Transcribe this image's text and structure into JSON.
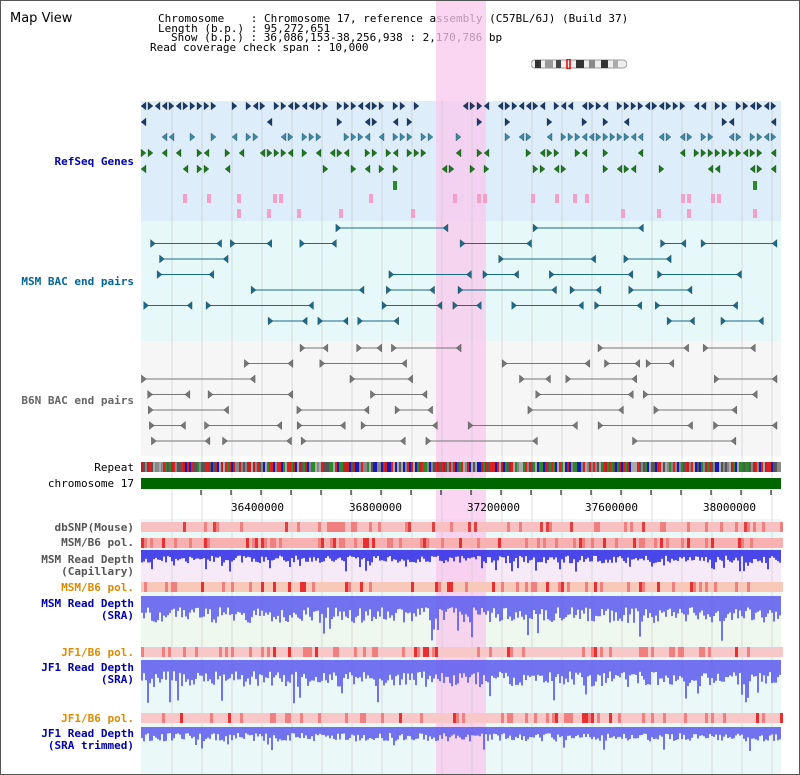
{
  "header": {
    "title": "Map View",
    "info_lines": [
      "Chromosome    : Chromosome 17, reference assembly (C57BL/6J) (Build 37)",
      "Length (b.p.) : 95,272,651",
      "Show (b.p.) : 36,086,153-38,256,938 : 2,170,786 bp",
      "Read coverage check span : 10,000"
    ]
  },
  "tracks": {
    "refseq": {
      "label": "RefSeq Genes",
      "color": "#0000aa"
    },
    "msm_bac": {
      "label": "MSM BAC end pairs",
      "color": "#006699"
    },
    "b6n_bac": {
      "label": "B6N BAC end pairs",
      "color": "#666666"
    },
    "repeat": {
      "label": "Repeat"
    },
    "chromosome": {
      "label": "chromosome 17",
      "color": "#006600"
    },
    "dbsnp": {
      "label": "dbSNP(Mouse)"
    },
    "msm_b6_pol_1": {
      "label": "MSM/B6 pol."
    },
    "msm_depth_cap": {
      "label": "MSM Read Depth\n(Capillary)"
    },
    "msm_b6_pol_2": {
      "label": "MSM/B6 pol."
    },
    "msm_depth_sra": {
      "label": "MSM Read Depth\n(SRA)"
    },
    "jf1_b6_pol_1": {
      "label": "JF1/B6 pol."
    },
    "jf1_depth_sra": {
      "label": "JF1 Read Depth\n(SRA)"
    },
    "jf1_b6_pol_2": {
      "label": "JF1/B6 pol."
    },
    "jf1_depth_trim": {
      "label": "JF1 Read Depth\n(SRA trimmed)"
    }
  },
  "axis": {
    "ticks": [
      "36400000",
      "36800000",
      "37200000",
      "37600000",
      "38000000"
    ]
  },
  "colors": {
    "highlight": "#f9c8ee",
    "refseq_bg": "#ddeefa",
    "msm_bg": "#e6f8f8",
    "depth_blue": "#2a2ae8",
    "pol_red": "#e83030",
    "pol_orange": "#e08a00"
  }
}
